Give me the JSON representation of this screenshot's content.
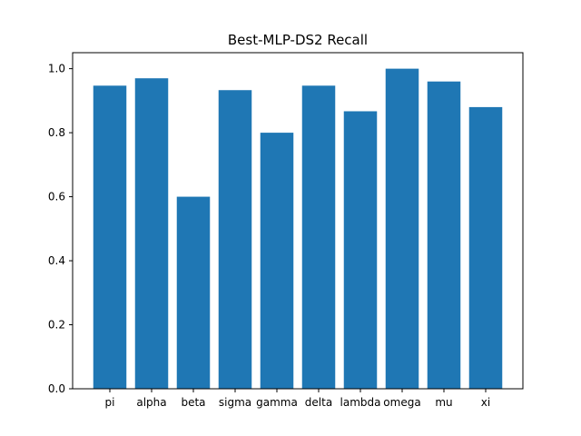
{
  "chart_data": {
    "type": "bar",
    "title": "Best-MLP-DS2 Recall",
    "xlabel": "",
    "ylabel": "",
    "categories": [
      "pi",
      "alpha",
      "beta",
      "sigma",
      "gamma",
      "delta",
      "lambda",
      "omega",
      "mu",
      "xi"
    ],
    "values": [
      0.947,
      0.97,
      0.6,
      0.933,
      0.8,
      0.947,
      0.867,
      1.0,
      0.96,
      0.88
    ],
    "ylim": [
      0,
      1.05
    ],
    "yticks": [
      0.0,
      0.2,
      0.4,
      0.6,
      0.8,
      1.0
    ],
    "ytick_labels": [
      "0.0",
      "0.2",
      "0.4",
      "0.6",
      "0.8",
      "1.0"
    ],
    "bar_color": "#1f77b4",
    "grid": false,
    "legend": "none"
  }
}
